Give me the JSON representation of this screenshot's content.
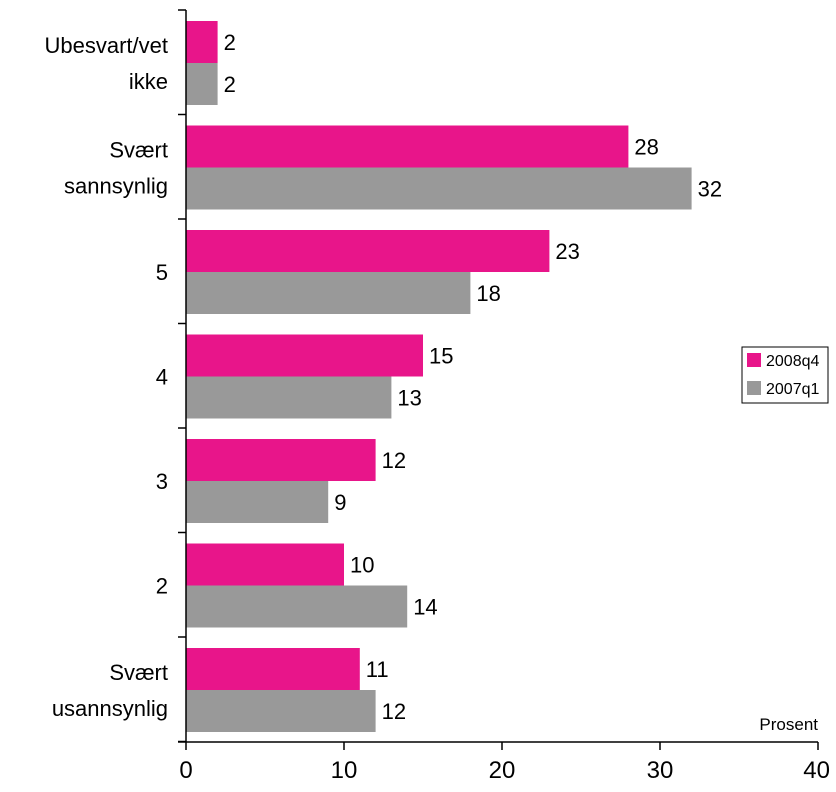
{
  "chart_data": {
    "type": "bar",
    "orientation": "horizontal",
    "categories": [
      "Ubesvart/vet ikke",
      "Svært sannsynlig",
      "5",
      "4",
      "3",
      "2",
      "Svært usannsynlig"
    ],
    "category_lines": [
      [
        "Ubesvart/vet",
        "ikke"
      ],
      [
        "Svært",
        "sannsynlig"
      ],
      [
        "5"
      ],
      [
        "4"
      ],
      [
        "3"
      ],
      [
        "2"
      ],
      [
        "Svært",
        "usannsynlig"
      ]
    ],
    "series": [
      {
        "name": "2008q4",
        "color": "#e8158a",
        "values": [
          2,
          28,
          23,
          15,
          12,
          10,
          11
        ]
      },
      {
        "name": "2007q1",
        "color": "#999999",
        "values": [
          2,
          32,
          18,
          13,
          9,
          14,
          12
        ]
      }
    ],
    "xlabel": "Prosent",
    "xlim": [
      0,
      40
    ],
    "xticks": [
      0,
      10,
      20,
      30,
      40
    ],
    "grid": false,
    "legend_position": "right",
    "data_labels": true
  }
}
